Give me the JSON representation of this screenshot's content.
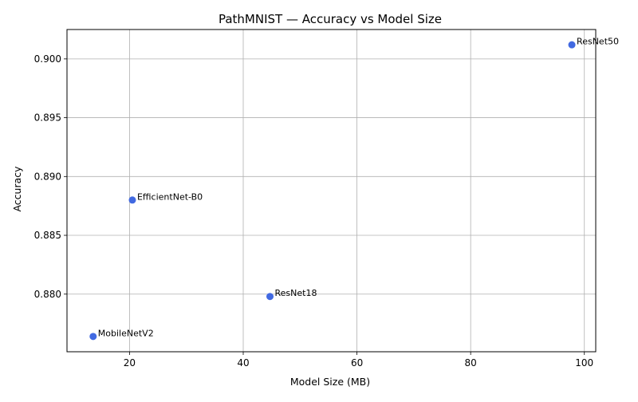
{
  "chart_data": {
    "type": "scatter",
    "title": "PathMNIST — Accuracy vs Model Size",
    "xlabel": "Model Size (MB)",
    "ylabel": "Accuracy",
    "xlim": [
      9,
      102
    ],
    "ylim": [
      0.8751,
      0.9025
    ],
    "xticks": [
      20,
      40,
      60,
      80,
      100
    ],
    "yticks": [
      0.88,
      0.885,
      0.89,
      0.895,
      0.9
    ],
    "xtick_labels": [
      "20",
      "40",
      "60",
      "80",
      "100"
    ],
    "ytick_labels": [
      "0.880",
      "0.885",
      "0.890",
      "0.895",
      "0.900"
    ],
    "grid": true,
    "point_color": "#4169e1",
    "points": [
      {
        "label": "MobileNetV2",
        "x": 13.6,
        "y": 0.8764
      },
      {
        "label": "EfficientNet-B0",
        "x": 20.5,
        "y": 0.888
      },
      {
        "label": "ResNet18",
        "x": 44.7,
        "y": 0.8798
      },
      {
        "label": "ResNet50",
        "x": 97.8,
        "y": 0.9012
      }
    ]
  }
}
